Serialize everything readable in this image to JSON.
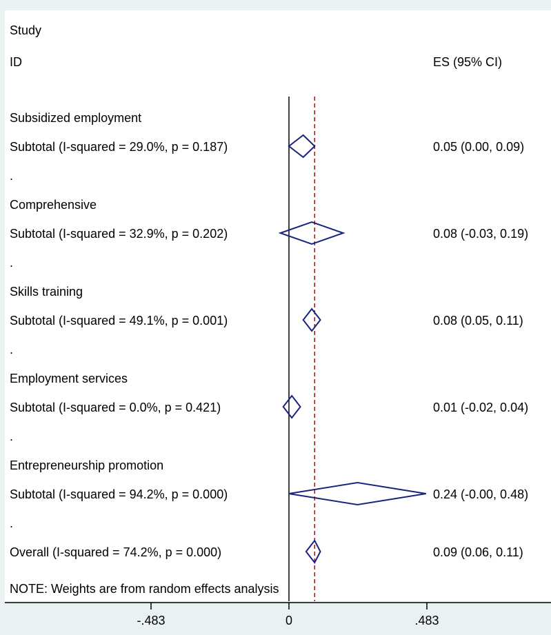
{
  "header": {
    "study_label": "Study",
    "id_label": "ID",
    "es_label": "ES (95% CI)"
  },
  "note": "NOTE: Weights are from random effects analysis",
  "colors": {
    "diamond": "#1a237e",
    "overall_line": "#8b1a1a",
    "axis": "#000000",
    "panel_bg": "#ffffff",
    "outer_bg": "#eaf1f3"
  },
  "chart_data": {
    "type": "forest",
    "xlim": [
      -0.483,
      0.483
    ],
    "x_ticks": [
      {
        "value": -0.483,
        "label": "-.483"
      },
      {
        "value": 0,
        "label": "0"
      },
      {
        "value": 0.483,
        "label": ".483"
      }
    ],
    "null_line": 0,
    "overall_line": 0.09,
    "rows": [
      {
        "kind": "group",
        "label": "Subsidized employment"
      },
      {
        "kind": "subtotal",
        "label": "Subtotal  (I-squared = 29.0%, p = 0.187)",
        "es": 0.05,
        "lo": 0.0,
        "hi": 0.09,
        "es_text": "0.05 (0.00, 0.09)"
      },
      {
        "kind": "spacer",
        "label": "."
      },
      {
        "kind": "group",
        "label": "Comprehensive"
      },
      {
        "kind": "subtotal",
        "label": "Subtotal  (I-squared = 32.9%, p = 0.202)",
        "es": 0.08,
        "lo": -0.03,
        "hi": 0.19,
        "es_text": "0.08 (-0.03, 0.19)"
      },
      {
        "kind": "spacer",
        "label": "."
      },
      {
        "kind": "group",
        "label": "Skills training"
      },
      {
        "kind": "subtotal",
        "label": "Subtotal  (I-squared = 49.1%, p = 0.001)",
        "es": 0.08,
        "lo": 0.05,
        "hi": 0.11,
        "es_text": "0.08 (0.05, 0.11)"
      },
      {
        "kind": "spacer",
        "label": "."
      },
      {
        "kind": "group",
        "label": "Employment services"
      },
      {
        "kind": "subtotal",
        "label": "Subtotal  (I-squared = 0.0%, p = 0.421)",
        "es": 0.01,
        "lo": -0.02,
        "hi": 0.04,
        "es_text": "0.01 (-0.02, 0.04)"
      },
      {
        "kind": "spacer",
        "label": "."
      },
      {
        "kind": "group",
        "label": "Entrepreneurship promotion"
      },
      {
        "kind": "subtotal",
        "label": "Subtotal  (I-squared = 94.2%, p = 0.000)",
        "es": 0.24,
        "lo": -0.0,
        "hi": 0.48,
        "es_text": "0.24 (-0.00, 0.48)"
      },
      {
        "kind": "spacer",
        "label": "."
      },
      {
        "kind": "overall",
        "label": "Overall  (I-squared = 74.2%, p = 0.000)",
        "es": 0.09,
        "lo": 0.06,
        "hi": 0.11,
        "es_text": "0.09 (0.06, 0.11)"
      }
    ]
  }
}
